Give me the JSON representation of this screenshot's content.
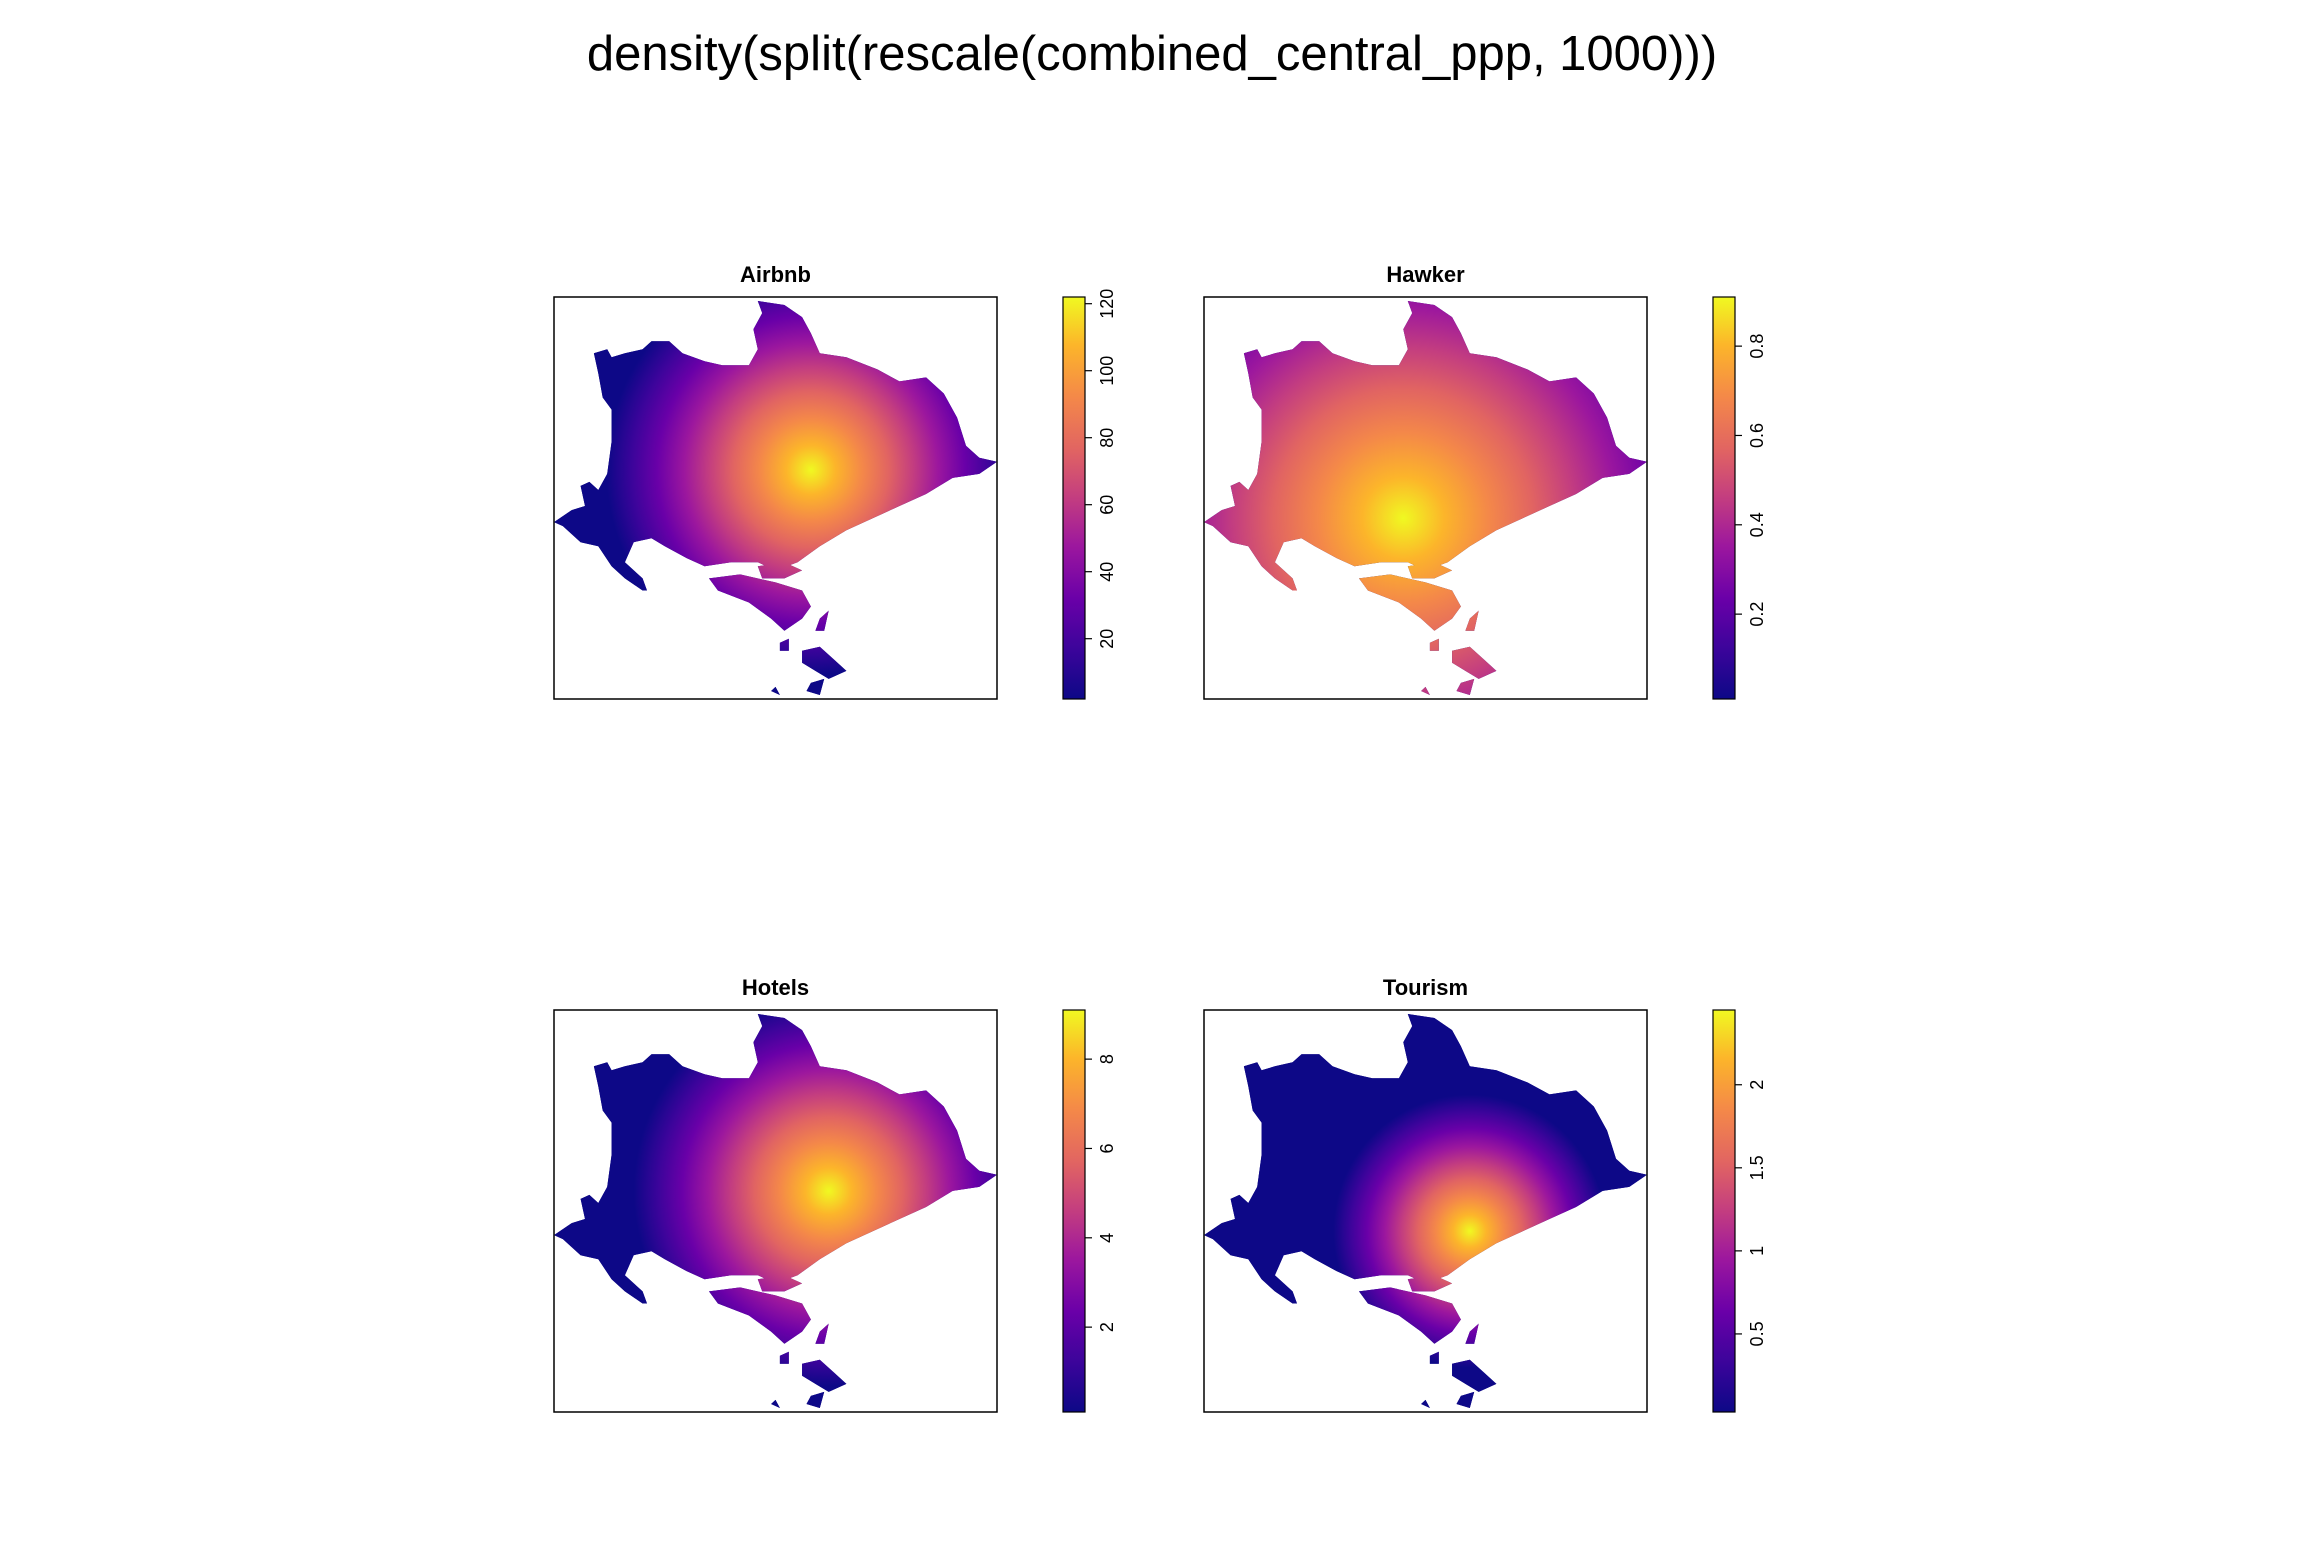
{
  "figure": {
    "title": "density(split(rescale(combined_central_ppp, 1000)))"
  },
  "chart_data": [
    {
      "type": "heatmap",
      "title": "Airbnb",
      "colorbar": {
        "min": 2,
        "max": 122,
        "ticks": [
          20,
          40,
          60,
          80,
          100,
          120
        ]
      },
      "peak": {
        "x": 0.58,
        "y": 0.43,
        "spread": 0.21
      },
      "palette": "plasma"
    },
    {
      "type": "heatmap",
      "title": "Hawker",
      "colorbar": {
        "min": 0.01,
        "max": 0.91,
        "ticks": [
          0.2,
          0.4,
          0.6,
          0.8
        ]
      },
      "peak": {
        "x": 0.45,
        "y": 0.55,
        "spread": 0.35
      },
      "palette": "plasma"
    },
    {
      "type": "heatmap",
      "title": "Hotels",
      "colorbar": {
        "min": 0.1,
        "max": 9.1,
        "ticks": [
          2,
          4,
          6,
          8
        ]
      },
      "peak": {
        "x": 0.62,
        "y": 0.45,
        "spread": 0.2
      },
      "palette": "plasma"
    },
    {
      "type": "heatmap",
      "title": "Tourism",
      "colorbar": {
        "min": 0.03,
        "max": 2.45,
        "ticks": [
          0.5,
          1,
          1.5,
          2
        ]
      },
      "peak": {
        "x": 0.6,
        "y": 0.55,
        "spread": 0.14
      },
      "palette": "plasma"
    }
  ]
}
